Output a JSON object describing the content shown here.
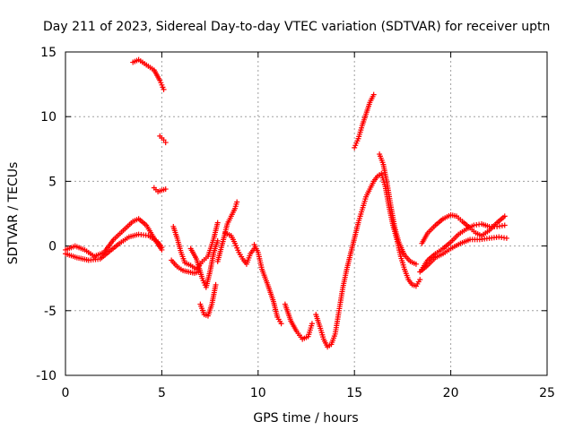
{
  "chart_data": {
    "type": "scatter",
    "title": "Day 211 of 2023, Sidereal Day-to-day VTEC variation (SDTVAR) for receiver uptn",
    "xlabel": "GPS time / hours",
    "ylabel": "SDTVAR / TECUs",
    "xlim": [
      0,
      25
    ],
    "ylim": [
      -10,
      15
    ],
    "xticks": [
      "0",
      "5",
      "10",
      "15",
      "20",
      "25"
    ],
    "yticks": [
      "-10",
      "-5",
      "0",
      "5",
      "10",
      "15"
    ],
    "grid": true,
    "marker": "+",
    "color": "#ff0000",
    "series": [
      {
        "name": "s1",
        "points": [
          [
            0,
            -0.3
          ],
          [
            0.5,
            0
          ],
          [
            1,
            -0.3
          ],
          [
            1.5,
            -0.8
          ],
          [
            2,
            -0.5
          ],
          [
            2.5,
            0.5
          ],
          [
            3,
            1.2
          ],
          [
            3.5,
            1.9
          ],
          [
            3.8,
            2.1
          ],
          [
            4.2,
            1.6
          ],
          [
            4.6,
            0.6
          ],
          [
            5,
            -0.3
          ]
        ]
      },
      {
        "name": "s2",
        "points": [
          [
            0,
            -0.6
          ],
          [
            0.6,
            -0.9
          ],
          [
            1.2,
            -1.1
          ],
          [
            1.8,
            -1.0
          ],
          [
            2.3,
            -0.4
          ],
          [
            2.8,
            0.2
          ],
          [
            3.3,
            0.7
          ],
          [
            3.8,
            0.9
          ],
          [
            4.3,
            0.8
          ],
          [
            4.8,
            0.3
          ],
          [
            5,
            -0.1
          ]
        ]
      },
      {
        "name": "s3",
        "points": [
          [
            3.5,
            14.2
          ],
          [
            3.8,
            14.4
          ],
          [
            4.2,
            14.0
          ],
          [
            4.6,
            13.6
          ],
          [
            4.9,
            12.8
          ],
          [
            5.1,
            12.1
          ]
        ]
      },
      {
        "name": "s4",
        "points": [
          [
            4.9,
            8.5
          ],
          [
            5.1,
            8.2
          ],
          [
            5.2,
            8.0
          ]
        ]
      },
      {
        "name": "s5",
        "points": [
          [
            4.6,
            4.5
          ],
          [
            4.8,
            4.2
          ],
          [
            5,
            4.3
          ],
          [
            5.2,
            4.4
          ]
        ]
      },
      {
        "name": "s6",
        "points": [
          [
            5.6,
            1.5
          ],
          [
            5.8,
            0.6
          ],
          [
            6,
            -0.5
          ],
          [
            6.2,
            -1.3
          ],
          [
            6.5,
            -1.5
          ],
          [
            6.8,
            -1.8
          ],
          [
            7.1,
            -1.2
          ],
          [
            7.4,
            -0.8
          ],
          [
            7.7,
            0.6
          ],
          [
            7.9,
            1.8
          ]
        ]
      },
      {
        "name": "s7",
        "points": [
          [
            5.5,
            -1.1
          ],
          [
            5.8,
            -1.6
          ],
          [
            6.1,
            -1.9
          ],
          [
            6.4,
            -2.0
          ],
          [
            6.7,
            -2.1
          ],
          [
            6.9,
            -2.0
          ]
        ]
      },
      {
        "name": "s8",
        "points": [
          [
            6.5,
            -0.2
          ],
          [
            6.8,
            -1.0
          ],
          [
            7.1,
            -2.5
          ],
          [
            7.3,
            -3.2
          ],
          [
            7.5,
            -2.0
          ],
          [
            7.7,
            -0.5
          ],
          [
            7.9,
            0.4
          ]
        ]
      },
      {
        "name": "s9",
        "points": [
          [
            7.0,
            -4.5
          ],
          [
            7.2,
            -5.3
          ],
          [
            7.4,
            -5.4
          ],
          [
            7.6,
            -4.5
          ],
          [
            7.8,
            -3.0
          ]
        ]
      },
      {
        "name": "s10",
        "points": [
          [
            7.9,
            -1.2
          ],
          [
            8.2,
            0.5
          ],
          [
            8.4,
            1.7
          ],
          [
            8.6,
            2.3
          ],
          [
            8.8,
            2.9
          ],
          [
            8.9,
            3.4
          ]
        ]
      },
      {
        "name": "s11",
        "points": [
          [
            8.3,
            1.0
          ],
          [
            8.6,
            0.8
          ],
          [
            8.8,
            0.2
          ],
          [
            9.0,
            -0.5
          ],
          [
            9.2,
            -1.0
          ],
          [
            9.4,
            -1.4
          ],
          [
            9.6,
            -0.6
          ],
          [
            9.8,
            -0.2
          ]
        ]
      },
      {
        "name": "s12",
        "points": [
          [
            9.8,
            0.1
          ],
          [
            10.0,
            -0.5
          ],
          [
            10.2,
            -1.8
          ],
          [
            10.5,
            -3.0
          ],
          [
            10.8,
            -4.3
          ],
          [
            11.0,
            -5.5
          ],
          [
            11.2,
            -6.0
          ]
        ]
      },
      {
        "name": "s13",
        "points": [
          [
            11.4,
            -4.5
          ],
          [
            11.7,
            -5.8
          ],
          [
            12.0,
            -6.6
          ],
          [
            12.3,
            -7.2
          ],
          [
            12.6,
            -7.0
          ],
          [
            12.8,
            -6.0
          ]
        ]
      },
      {
        "name": "s14",
        "points": [
          [
            13.0,
            -5.3
          ],
          [
            13.2,
            -6.2
          ],
          [
            13.4,
            -7.2
          ],
          [
            13.6,
            -7.8
          ],
          [
            13.8,
            -7.6
          ],
          [
            14.0,
            -6.8
          ],
          [
            14.2,
            -5.0
          ],
          [
            14.4,
            -3.2
          ],
          [
            14.6,
            -1.8
          ],
          [
            14.8,
            -0.6
          ],
          [
            15.0,
            0.6
          ],
          [
            15.2,
            1.8
          ],
          [
            15.4,
            2.8
          ],
          [
            15.6,
            3.8
          ],
          [
            15.8,
            4.4
          ],
          [
            16.0,
            5.0
          ],
          [
            16.2,
            5.4
          ],
          [
            16.4,
            5.6
          ],
          [
            16.6,
            4.6
          ],
          [
            16.8,
            3.0
          ],
          [
            17.0,
            1.6
          ],
          [
            17.2,
            0.5
          ],
          [
            17.4,
            -0.8
          ],
          [
            17.6,
            -1.8
          ],
          [
            17.8,
            -2.6
          ],
          [
            18.0,
            -3.0
          ],
          [
            18.2,
            -3.1
          ],
          [
            18.4,
            -2.6
          ]
        ]
      },
      {
        "name": "s15",
        "points": [
          [
            15.0,
            7.6
          ],
          [
            15.2,
            8.3
          ],
          [
            15.4,
            9.3
          ],
          [
            15.6,
            10.2
          ],
          [
            15.8,
            11.1
          ],
          [
            16.0,
            11.7
          ]
        ]
      },
      {
        "name": "s16",
        "points": [
          [
            16.3,
            7.1
          ],
          [
            16.5,
            6.3
          ],
          [
            16.7,
            4.8
          ],
          [
            16.9,
            3.0
          ],
          [
            17.1,
            1.4
          ],
          [
            17.3,
            0.3
          ],
          [
            17.6,
            -0.7
          ],
          [
            17.9,
            -1.2
          ],
          [
            18.2,
            -1.4
          ]
        ]
      },
      {
        "name": "s17",
        "points": [
          [
            18.5,
            0.2
          ],
          [
            18.8,
            1.0
          ],
          [
            19.2,
            1.6
          ],
          [
            19.6,
            2.1
          ],
          [
            20.0,
            2.4
          ],
          [
            20.3,
            2.3
          ],
          [
            20.6,
            1.9
          ],
          [
            21.0,
            1.4
          ],
          [
            21.3,
            1.0
          ],
          [
            21.6,
            0.8
          ],
          [
            22.0,
            1.2
          ],
          [
            22.4,
            1.8
          ],
          [
            22.8,
            2.3
          ]
        ]
      },
      {
        "name": "s18",
        "points": [
          [
            18.5,
            -1.8
          ],
          [
            18.8,
            -1.1
          ],
          [
            19.2,
            -0.6
          ],
          [
            19.6,
            -0.2
          ],
          [
            20.0,
            0.3
          ],
          [
            20.4,
            0.9
          ],
          [
            20.8,
            1.3
          ],
          [
            21.2,
            1.6
          ],
          [
            21.6,
            1.7
          ],
          [
            22.0,
            1.5
          ],
          [
            22.4,
            1.5
          ],
          [
            22.8,
            1.6
          ]
        ]
      },
      {
        "name": "s19",
        "points": [
          [
            18.4,
            -2.0
          ],
          [
            18.8,
            -1.5
          ],
          [
            19.2,
            -0.9
          ],
          [
            19.6,
            -0.6
          ],
          [
            20.0,
            -0.2
          ],
          [
            20.5,
            0.2
          ],
          [
            21.0,
            0.5
          ],
          [
            21.5,
            0.5
          ],
          [
            22.0,
            0.6
          ],
          [
            22.5,
            0.7
          ],
          [
            22.9,
            0.6
          ]
        ]
      }
    ]
  }
}
